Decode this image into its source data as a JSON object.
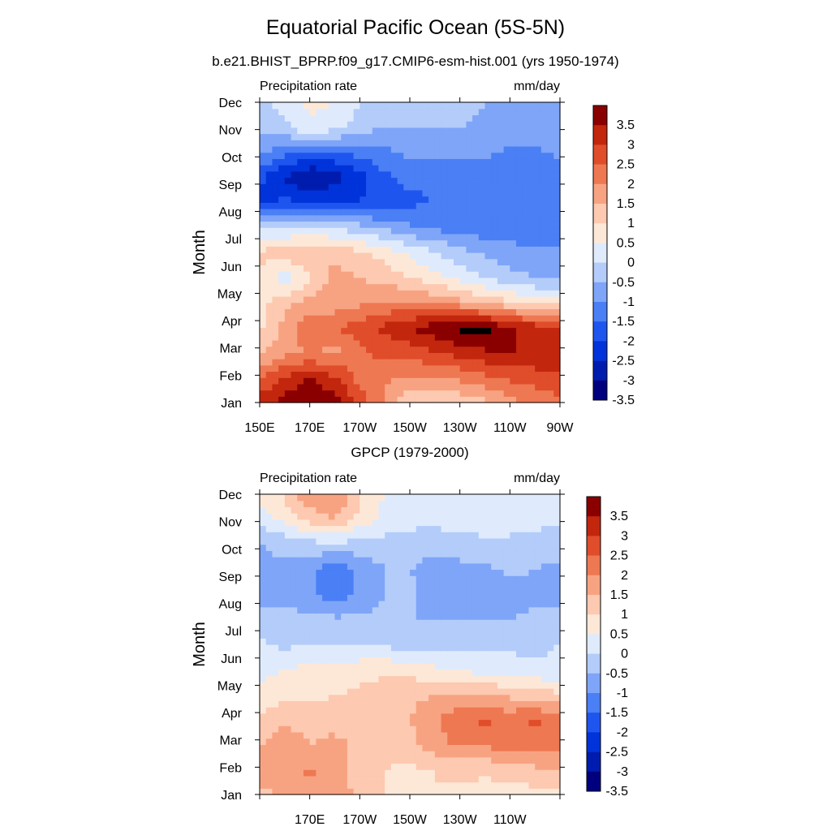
{
  "figure": {
    "title": "Equatorial Pacific Ocean (5S-5N)"
  },
  "chart_data": [
    {
      "type": "heatmap",
      "title": "b.e21.BHIST_BPRP.f09_g17.CMIP6-esm-hist.001 (yrs 1950-1974)",
      "left_string": "Precipitation rate",
      "right_string": "mm/day",
      "ylabel": "Month",
      "x_ticks": [
        "150E",
        "170E",
        "170W",
        "150W",
        "130W",
        "110W",
        "90W"
      ],
      "y_ticks": [
        "Jan",
        "Feb",
        "Mar",
        "Apr",
        "May",
        "Jun",
        "Jul",
        "Aug",
        "Sep",
        "Oct",
        "Nov",
        "Dec"
      ],
      "xlim_deg_east": [
        150,
        270
      ],
      "levels": [
        -3.5,
        -3,
        -2.5,
        -2,
        -1.5,
        -1,
        -0.5,
        0,
        0.5,
        1,
        1.5,
        2,
        2.5,
        3,
        3.5
      ],
      "colorbar_labels": [
        "3.5",
        "3",
        "2.5",
        "2",
        "1.5",
        "1",
        "0.5",
        "0",
        "-0.5",
        "-1",
        "-1.5",
        "-2",
        "-2.5",
        "-3",
        "-3.5"
      ],
      "x_lon": [
        150,
        160,
        170,
        180,
        190,
        200,
        210,
        220,
        230,
        240,
        250,
        260,
        270
      ],
      "grid_rows_month_order": "Jan..Dec, last row = Dec repeat",
      "z": [
        [
          2.8,
          3.2,
          3.4,
          3.2,
          2.4,
          1.4,
          0.6,
          0.5,
          0.6,
          0.9,
          1.3,
          1.6,
          1.8
        ],
        [
          1.9,
          2.6,
          3.0,
          2.6,
          1.8,
          1.6,
          1.4,
          1.4,
          1.6,
          1.9,
          2.1,
          2.2,
          2.4
        ],
        [
          0.9,
          1.3,
          1.6,
          1.3,
          1.9,
          2.2,
          2.2,
          2.5,
          2.7,
          2.9,
          3.0,
          3.0,
          2.9
        ],
        [
          0.4,
          1.2,
          1.8,
          2.0,
          2.2,
          2.6,
          3.0,
          3.3,
          3.6,
          3.7,
          3.1,
          2.8,
          2.7
        ],
        [
          0.3,
          0.8,
          1.2,
          1.2,
          1.4,
          1.6,
          1.6,
          1.4,
          1.2,
          0.9,
          0.6,
          0.3,
          0.2
        ],
        [
          0.4,
          -0.3,
          0.4,
          1.2,
          1.0,
          0.8,
          0.5,
          0.2,
          -0.2,
          -0.5,
          -0.8,
          -1.0,
          -1.1
        ],
        [
          0.6,
          0.8,
          1.0,
          0.9,
          0.6,
          0.3,
          -0.1,
          -0.5,
          -0.8,
          -1.1,
          -1.3,
          -1.4,
          -1.4
        ],
        [
          -0.4,
          -0.5,
          -0.5,
          -0.6,
          -0.8,
          -1.1,
          -1.4,
          -1.6,
          -1.7,
          -1.8,
          -1.8,
          -1.8,
          -1.8
        ],
        [
          -2.6,
          -2.4,
          -2.4,
          -2.5,
          -2.5,
          -2.3,
          -2.1,
          -2.0,
          -1.9,
          -1.9,
          -1.9,
          -1.9,
          -1.9
        ],
        [
          -2.4,
          -3.1,
          -3.6,
          -3.2,
          -2.7,
          -2.1,
          -1.9,
          -1.9,
          -1.9,
          -1.9,
          -1.9,
          -1.9,
          -1.9
        ],
        [
          -1.4,
          -1.8,
          -2.1,
          -2.1,
          -1.8,
          -1.6,
          -1.4,
          -1.3,
          -1.3,
          -1.4,
          -1.6,
          -1.6,
          -1.4
        ],
        [
          -0.9,
          -0.6,
          -0.1,
          -0.3,
          -0.8,
          -1.0,
          -1.0,
          -1.0,
          -1.0,
          -1.1,
          -1.1,
          -1.2,
          -1.2
        ],
        [
          -0.6,
          -0.3,
          0.1,
          0.0,
          -0.5,
          -0.9,
          -0.9,
          -0.9,
          -0.9,
          -1.0,
          -1.1,
          -1.2,
          -1.2
        ]
      ]
    },
    {
      "type": "heatmap",
      "title": "GPCP (1979-2000)",
      "left_string": "Precipitation rate",
      "right_string": "mm/day",
      "ylabel": "Month",
      "x_ticks": [
        "",
        "170E",
        "170W",
        "150W",
        "130W",
        "110W",
        ""
      ],
      "y_ticks": [
        "Jan",
        "Feb",
        "Mar",
        "Apr",
        "May",
        "Jun",
        "Jul",
        "Aug",
        "Sep",
        "Oct",
        "Nov",
        "Dec"
      ],
      "xlim_deg_east": [
        150,
        270
      ],
      "levels": [
        -3.5,
        -3,
        -2.5,
        -2,
        -1.5,
        -1,
        -0.5,
        0,
        0.5,
        1,
        1.5,
        2,
        2.5,
        3,
        3.5
      ],
      "colorbar_labels": [
        "3.5",
        "3",
        "2.5",
        "2",
        "1.5",
        "1",
        "0.5",
        "0",
        "-0.5",
        "-1",
        "-1.5",
        "-2",
        "-2.5",
        "-3",
        "-3.5"
      ],
      "x_lon": [
        150,
        160,
        170,
        180,
        190,
        200,
        210,
        220,
        230,
        240,
        250,
        260,
        270
      ],
      "grid_rows_month_order": "Jan..Dec, last row = Dec repeat",
      "z": [
        [
          0.8,
          1.1,
          1.2,
          1.4,
          0.8,
          0.5,
          0.5,
          0.5,
          0.4,
          0.3,
          0.3,
          0.3,
          0.3
        ],
        [
          1.3,
          1.2,
          1.6,
          1.3,
          0.6,
          0.5,
          0.4,
          0.5,
          0.6,
          0.6,
          0.7,
          0.9,
          1.0
        ],
        [
          1.0,
          1.3,
          1.0,
          1.2,
          0.9,
          0.7,
          0.8,
          1.3,
          1.6,
          1.6,
          1.7,
          1.8,
          1.7
        ],
        [
          0.6,
          0.9,
          0.8,
          0.7,
          0.6,
          0.6,
          1.0,
          1.4,
          1.9,
          2.1,
          1.8,
          2.1,
          1.6
        ],
        [
          0.2,
          0.4,
          0.4,
          0.5,
          0.6,
          0.7,
          0.9,
          1.0,
          1.0,
          1.0,
          0.9,
          0.7,
          0.6
        ],
        [
          -0.2,
          0.0,
          0.2,
          0.2,
          0.3,
          0.4,
          0.3,
          0.1,
          -0.1,
          -0.2,
          -0.3,
          -0.4,
          -0.4
        ],
        [
          -0.4,
          -0.6,
          -0.5,
          -0.5,
          -0.5,
          -0.6,
          -0.7,
          -0.7,
          -0.6,
          -0.6,
          -0.6,
          -0.6,
          -0.5
        ],
        [
          -0.7,
          -0.9,
          -0.8,
          -0.9,
          -0.9,
          -0.9,
          -1.0,
          -1.0,
          -1.0,
          -1.0,
          -1.0,
          -0.9,
          -0.9
        ],
        [
          -1.2,
          -1.1,
          -1.4,
          -1.8,
          -1.3,
          -1.0,
          -0.9,
          -1.3,
          -1.3,
          -1.2,
          -1.3,
          -1.1,
          -1.1
        ],
        [
          -1.1,
          -1.1,
          -1.3,
          -1.9,
          -1.4,
          -1.0,
          -1.0,
          -1.2,
          -1.2,
          -1.1,
          -0.9,
          -1.0,
          -1.1
        ],
        [
          -1.0,
          -0.9,
          -0.7,
          -0.6,
          -0.7,
          -0.7,
          -0.8,
          -0.9,
          -0.7,
          -0.6,
          -0.6,
          -0.8,
          -0.8
        ],
        [
          -0.3,
          0.1,
          0.7,
          1.0,
          0.3,
          -0.2,
          -0.3,
          -0.3,
          -0.3,
          -0.3,
          -0.3,
          -0.3,
          -0.4
        ],
        [
          0.2,
          0.6,
          1.4,
          1.5,
          0.6,
          0.0,
          -0.2,
          -0.2,
          -0.2,
          -0.2,
          -0.2,
          -0.2,
          -0.2
        ]
      ]
    }
  ],
  "colors": {
    "palette": [
      "#00007f",
      "#001caf",
      "#0033d9",
      "#1f55ef",
      "#4a7ff5",
      "#7fa5f8",
      "#b3ccfa",
      "#dfebfc",
      "#fde8d8",
      "#fdc9b0",
      "#f7a382",
      "#ee7852",
      "#e04d2b",
      "#c2260d",
      "#8a0000"
    ],
    "frame": "#000000"
  }
}
